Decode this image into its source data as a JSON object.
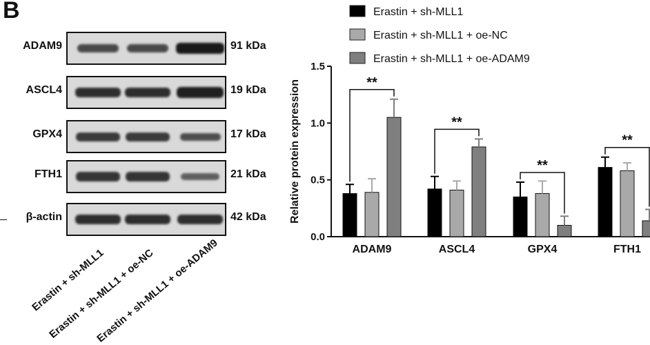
{
  "figure": {
    "panel_letter": "B"
  },
  "blot": {
    "rows": [
      {
        "protein": "ADAM9",
        "kda": "91 kDa"
      },
      {
        "protein": "ASCL4",
        "kda": "19 kDa"
      },
      {
        "protein": "GPX4",
        "kda": "17 kDa"
      },
      {
        "protein": "FTH1",
        "kda": "21 kDa"
      },
      {
        "protein": "β-actin",
        "kda": "42 kDa"
      }
    ],
    "lanes": [
      "Erastin + sh-MLL1",
      "Erastin + sh-MLL1 + oe-NC",
      "Erastin + sh-MLL1 + oe-ADAM9"
    ],
    "band_intensity": [
      [
        0.55,
        0.55,
        1.0
      ],
      [
        0.8,
        0.8,
        0.95
      ],
      [
        0.7,
        0.7,
        0.5
      ],
      [
        0.75,
        0.75,
        0.35
      ],
      [
        0.8,
        0.8,
        0.8
      ]
    ]
  },
  "chart_data": {
    "type": "bar",
    "title": "",
    "xlabel": "",
    "ylabel": "Relative protein expression",
    "ylim": [
      0,
      1.5
    ],
    "yticks": [
      "0.0",
      "0.5",
      "1.0",
      "1.5"
    ],
    "categories": [
      "ADAM9",
      "ASCL4",
      "GPX4",
      "FTH1"
    ],
    "series": [
      {
        "name": "Erastin + sh-MLL1",
        "color": "#000000",
        "values": [
          0.38,
          0.42,
          0.35,
          0.61
        ],
        "errors": [
          0.08,
          0.11,
          0.13,
          0.09
        ]
      },
      {
        "name": "Erastin + sh-MLL1 + oe-NC",
        "color": "#a9a9a9",
        "values": [
          0.39,
          0.41,
          0.38,
          0.58
        ],
        "errors": [
          0.12,
          0.08,
          0.11,
          0.07
        ]
      },
      {
        "name": "Erastin + sh-MLL1 + oe-ADAM9",
        "color": "#7f7f7f",
        "values": [
          1.05,
          0.79,
          0.1,
          0.14
        ],
        "errors": [
          0.16,
          0.07,
          0.08,
          0.1
        ]
      }
    ],
    "significance": [
      {
        "category": "ADAM9",
        "label": "**"
      },
      {
        "category": "ASCL4",
        "label": "**"
      },
      {
        "category": "GPX4",
        "label": "**"
      },
      {
        "category": "FTH1",
        "label": "**"
      }
    ],
    "legend_position": "top"
  }
}
